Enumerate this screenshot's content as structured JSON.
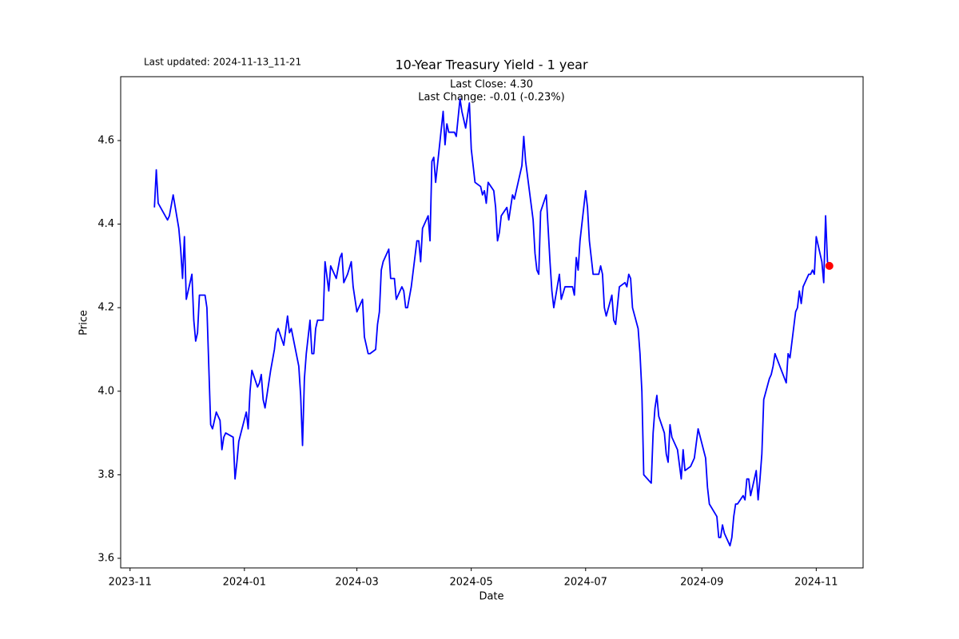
{
  "chart_data": {
    "type": "line",
    "title": "10-Year Treasury Yield - 1 year",
    "subtitle": [
      "Last Close: 4.30",
      "Last Change: -0.01 (-0.23%)"
    ],
    "annotation": "Last updated: 2024-11-13_11-21",
    "x_label": "Date",
    "y_label": "Price",
    "color": "#0000ff",
    "last_marker_color": "#ff0000",
    "xlim": [
      "2023-10-27",
      "2024-11-26"
    ],
    "xticks": [
      {
        "value": "2023-11-01",
        "label": "2023-11"
      },
      {
        "value": "2024-01-01",
        "label": "2024-01"
      },
      {
        "value": "2024-03-01",
        "label": "2024-03"
      },
      {
        "value": "2024-05-01",
        "label": "2024-05"
      },
      {
        "value": "2024-07-01",
        "label": "2024-07"
      },
      {
        "value": "2024-09-01",
        "label": "2024-09"
      },
      {
        "value": "2024-11-01",
        "label": "2024-11"
      }
    ],
    "ylim": [
      3.577,
      4.753
    ],
    "yticks": [
      3.6,
      3.8,
      {
        "value": 4,
        "label": "4.0"
      },
      4.2,
      4.4,
      4.6
    ],
    "x": [
      "2023-11-14",
      "2023-11-15",
      "2023-11-16",
      "2023-11-21",
      "2023-11-22",
      "2023-11-24",
      "2023-11-27",
      "2023-11-28",
      "2023-11-29",
      "2023-11-30",
      "2023-12-01",
      "2023-12-03",
      "2023-12-04",
      "2023-12-05",
      "2023-12-06",
      "2023-12-07",
      "2023-12-08",
      "2023-12-11",
      "2023-12-12",
      "2023-12-14",
      "2023-12-15",
      "2023-12-17",
      "2023-12-19",
      "2023-12-20",
      "2023-12-21",
      "2023-12-22",
      "2023-12-26",
      "2023-12-27",
      "2023-12-28",
      "2023-12-29",
      "2024-01-02",
      "2024-01-03",
      "2024-01-04",
      "2024-01-05",
      "2024-01-08",
      "2024-01-09",
      "2024-01-10",
      "2024-01-11",
      "2024-01-12",
      "2024-01-15",
      "2024-01-17",
      "2024-01-18",
      "2024-01-19",
      "2024-01-22",
      "2024-01-24",
      "2024-01-25",
      "2024-01-26",
      "2024-01-30",
      "2024-01-31",
      "2024-02-01",
      "2024-02-02",
      "2024-02-03",
      "2024-02-05",
      "2024-02-06",
      "2024-02-07",
      "2024-02-08",
      "2024-02-09",
      "2024-02-12",
      "2024-02-13",
      "2024-02-15",
      "2024-02-16",
      "2024-02-19",
      "2024-02-21",
      "2024-02-22",
      "2024-02-23",
      "2024-02-25",
      "2024-02-27",
      "2024-02-28",
      "2024-03-01",
      "2024-03-04",
      "2024-03-05",
      "2024-03-07",
      "2024-03-08",
      "2024-03-11",
      "2024-03-12",
      "2024-03-13",
      "2024-03-14",
      "2024-03-15",
      "2024-03-18",
      "2024-03-19",
      "2024-03-21",
      "2024-03-22",
      "2024-03-25",
      "2024-03-26",
      "2024-03-27",
      "2024-03-28",
      "2024-03-30",
      "2024-04-02",
      "2024-04-03",
      "2024-04-04",
      "2024-04-05",
      "2024-04-08",
      "2024-04-09",
      "2024-04-10",
      "2024-04-11",
      "2024-04-12",
      "2024-04-16",
      "2024-04-17",
      "2024-04-18",
      "2024-04-19",
      "2024-04-22",
      "2024-04-23",
      "2024-04-25",
      "2024-04-26",
      "2024-04-28",
      "2024-04-30",
      "2024-05-01",
      "2024-05-03",
      "2024-05-06",
      "2024-05-07",
      "2024-05-08",
      "2024-05-09",
      "2024-05-10",
      "2024-05-13",
      "2024-05-14",
      "2024-05-15",
      "2024-05-16",
      "2024-05-17",
      "2024-05-20",
      "2024-05-21",
      "2024-05-23",
      "2024-05-24",
      "2024-05-28",
      "2024-05-29",
      "2024-05-30",
      "2024-06-03",
      "2024-06-04",
      "2024-06-05",
      "2024-06-06",
      "2024-06-07",
      "2024-06-10",
      "2024-06-11",
      "2024-06-12",
      "2024-06-13",
      "2024-06-14",
      "2024-06-17",
      "2024-06-18",
      "2024-06-20",
      "2024-06-24",
      "2024-06-25",
      "2024-06-26",
      "2024-06-27",
      "2024-06-28",
      "2024-07-01",
      "2024-07-02",
      "2024-07-03",
      "2024-07-05",
      "2024-07-08",
      "2024-07-09",
      "2024-07-10",
      "2024-07-11",
      "2024-07-12",
      "2024-07-15",
      "2024-07-16",
      "2024-07-17",
      "2024-07-19",
      "2024-07-22",
      "2024-07-23",
      "2024-07-24",
      "2024-07-25",
      "2024-07-26",
      "2024-07-29",
      "2024-07-30",
      "2024-07-31",
      "2024-08-01",
      "2024-08-05",
      "2024-08-06",
      "2024-08-07",
      "2024-08-08",
      "2024-08-09",
      "2024-08-12",
      "2024-08-13",
      "2024-08-14",
      "2024-08-15",
      "2024-08-16",
      "2024-08-19",
      "2024-08-21",
      "2024-08-22",
      "2024-08-23",
      "2024-08-26",
      "2024-08-28",
      "2024-08-30",
      "2024-09-03",
      "2024-09-04",
      "2024-09-05",
      "2024-09-09",
      "2024-09-10",
      "2024-09-11",
      "2024-09-12",
      "2024-09-13",
      "2024-09-16",
      "2024-09-17",
      "2024-09-18",
      "2024-09-19",
      "2024-09-20",
      "2024-09-23",
      "2024-09-24",
      "2024-09-25",
      "2024-09-26",
      "2024-09-27",
      "2024-09-30",
      "2024-10-01",
      "2024-10-02",
      "2024-10-03",
      "2024-10-04",
      "2024-10-07",
      "2024-10-08",
      "2024-10-09",
      "2024-10-10",
      "2024-10-16",
      "2024-10-17",
      "2024-10-18",
      "2024-10-21",
      "2024-10-22",
      "2024-10-23",
      "2024-10-24",
      "2024-10-25",
      "2024-10-28",
      "2024-10-29",
      "2024-10-30",
      "2024-10-31",
      "2024-11-01",
      "2024-11-04",
      "2024-11-05",
      "2024-11-06",
      "2024-11-07",
      "2024-11-08"
    ],
    "values": [
      4.44,
      4.53,
      4.45,
      4.41,
      4.42,
      4.47,
      4.39,
      4.34,
      4.27,
      4.37,
      4.22,
      4.26,
      4.28,
      4.17,
      4.12,
      4.14,
      4.23,
      4.23,
      4.2,
      3.92,
      3.91,
      3.95,
      3.93,
      3.86,
      3.89,
      3.9,
      3.89,
      3.79,
      3.83,
      3.88,
      3.95,
      3.91,
      4.0,
      4.05,
      4.01,
      4.02,
      4.04,
      3.98,
      3.96,
      4.05,
      4.1,
      4.14,
      4.15,
      4.11,
      4.18,
      4.14,
      4.15,
      4.06,
      3.99,
      3.87,
      4.03,
      4.09,
      4.17,
      4.09,
      4.09,
      4.15,
      4.17,
      4.17,
      4.31,
      4.24,
      4.3,
      4.27,
      4.32,
      4.33,
      4.26,
      4.28,
      4.31,
      4.25,
      4.19,
      4.22,
      4.13,
      4.09,
      4.09,
      4.1,
      4.16,
      4.19,
      4.29,
      4.31,
      4.34,
      4.27,
      4.27,
      4.22,
      4.25,
      4.24,
      4.2,
      4.2,
      4.25,
      4.36,
      4.36,
      4.31,
      4.39,
      4.42,
      4.36,
      4.55,
      4.56,
      4.5,
      4.67,
      4.59,
      4.64,
      4.62,
      4.62,
      4.61,
      4.7,
      4.67,
      4.63,
      4.69,
      4.58,
      4.5,
      4.49,
      4.47,
      4.48,
      4.45,
      4.5,
      4.48,
      4.44,
      4.36,
      4.38,
      4.42,
      4.44,
      4.41,
      4.47,
      4.46,
      4.54,
      4.61,
      4.55,
      4.41,
      4.33,
      4.29,
      4.28,
      4.43,
      4.47,
      4.39,
      4.31,
      4.24,
      4.2,
      4.28,
      4.22,
      4.25,
      4.25,
      4.23,
      4.32,
      4.29,
      4.36,
      4.48,
      4.44,
      4.36,
      4.28,
      4.28,
      4.3,
      4.28,
      4.2,
      4.18,
      4.23,
      4.17,
      4.16,
      4.25,
      4.26,
      4.25,
      4.28,
      4.27,
      4.2,
      4.15,
      4.09,
      4.0,
      3.8,
      3.78,
      3.9,
      3.96,
      3.99,
      3.94,
      3.9,
      3.85,
      3.83,
      3.92,
      3.89,
      3.86,
      3.79,
      3.86,
      3.81,
      3.82,
      3.84,
      3.91,
      3.84,
      3.77,
      3.73,
      3.7,
      3.65,
      3.65,
      3.68,
      3.66,
      3.63,
      3.65,
      3.7,
      3.73,
      3.73,
      3.75,
      3.74,
      3.79,
      3.79,
      3.75,
      3.81,
      3.74,
      3.79,
      3.85,
      3.98,
      4.03,
      4.04,
      4.06,
      4.09,
      4.02,
      4.09,
      4.08,
      4.19,
      4.2,
      4.24,
      4.21,
      4.25,
      4.28,
      4.28,
      4.29,
      4.28,
      4.37,
      4.31,
      4.26,
      4.42,
      4.31,
      4.3
    ]
  }
}
